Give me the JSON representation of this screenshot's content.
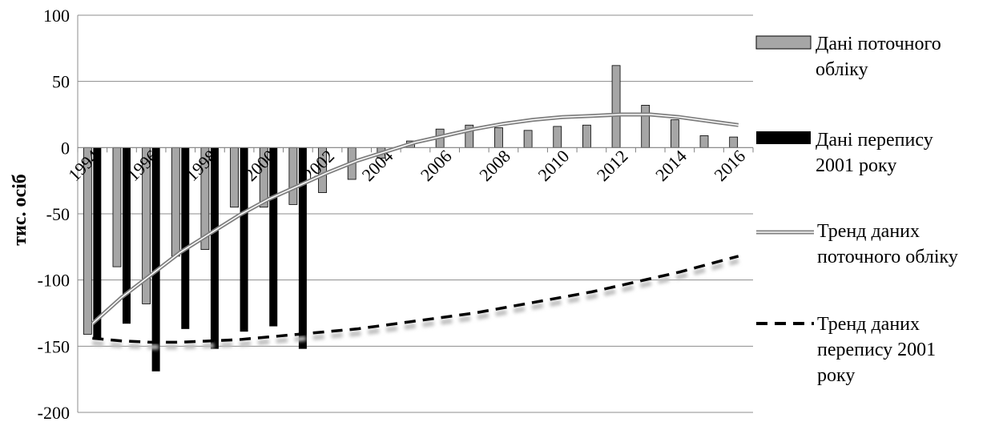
{
  "chart_data": {
    "type": "bar",
    "title": "",
    "xlabel": "",
    "ylabel": "тис. осіб",
    "ylim": [
      -200,
      100
    ],
    "yticks": [
      100,
      50,
      0,
      -50,
      -100,
      -150,
      -200
    ],
    "categories": [
      "1994",
      "1995",
      "1996",
      "1997",
      "1998",
      "1999",
      "2000",
      "2001",
      "2002",
      "2003",
      "2004",
      "2005",
      "2006",
      "2007",
      "2008",
      "2009",
      "2010",
      "2011",
      "2012",
      "2013",
      "2014",
      "2015",
      "2016"
    ],
    "xtick_labels": [
      "1994",
      "1996",
      "1998",
      "2000",
      "2002",
      "2004",
      "2006",
      "2008",
      "2010",
      "2012",
      "2014",
      "2016"
    ],
    "grid": true,
    "legend_position": "right",
    "series": [
      {
        "name": "Дані поточного обліку",
        "kind": "bar",
        "color": "#a6a6a6",
        "values": [
          -141,
          -90,
          -118,
          -82,
          -77,
          -45,
          -45,
          -43,
          -34,
          -24,
          -8,
          5,
          14,
          17,
          15,
          13,
          16,
          17,
          62,
          32,
          21,
          9,
          8
        ]
      },
      {
        "name": "Дані перепису 2001 року",
        "kind": "bar",
        "color": "#000000",
        "values": [
          -145,
          -133,
          -169,
          -137,
          -152,
          -139,
          -135,
          -152,
          null,
          null,
          null,
          null,
          null,
          null,
          null,
          null,
          null,
          null,
          null,
          null,
          null,
          null,
          null
        ]
      },
      {
        "name": "Тренд даних поточного обліку",
        "kind": "line",
        "style": "double",
        "color": "#7f7f7f",
        "values": [
          -133,
          -113,
          -96,
          -79,
          -65,
          -51,
          -39,
          -29,
          -19,
          -10,
          -3,
          4,
          9,
          14,
          18,
          21,
          23,
          24,
          25,
          25,
          23,
          20,
          17
        ]
      },
      {
        "name": "Тренд даних перепису 2001 року",
        "kind": "line",
        "style": "dashed",
        "color": "#000000",
        "values": [
          -144,
          -146,
          -147,
          -147,
          -146,
          -145,
          -143,
          -141,
          -139,
          -137,
          -134,
          -131,
          -128,
          -125,
          -121,
          -117,
          -113,
          -109,
          -104,
          -99,
          -94,
          -88,
          -82
        ]
      }
    ]
  }
}
